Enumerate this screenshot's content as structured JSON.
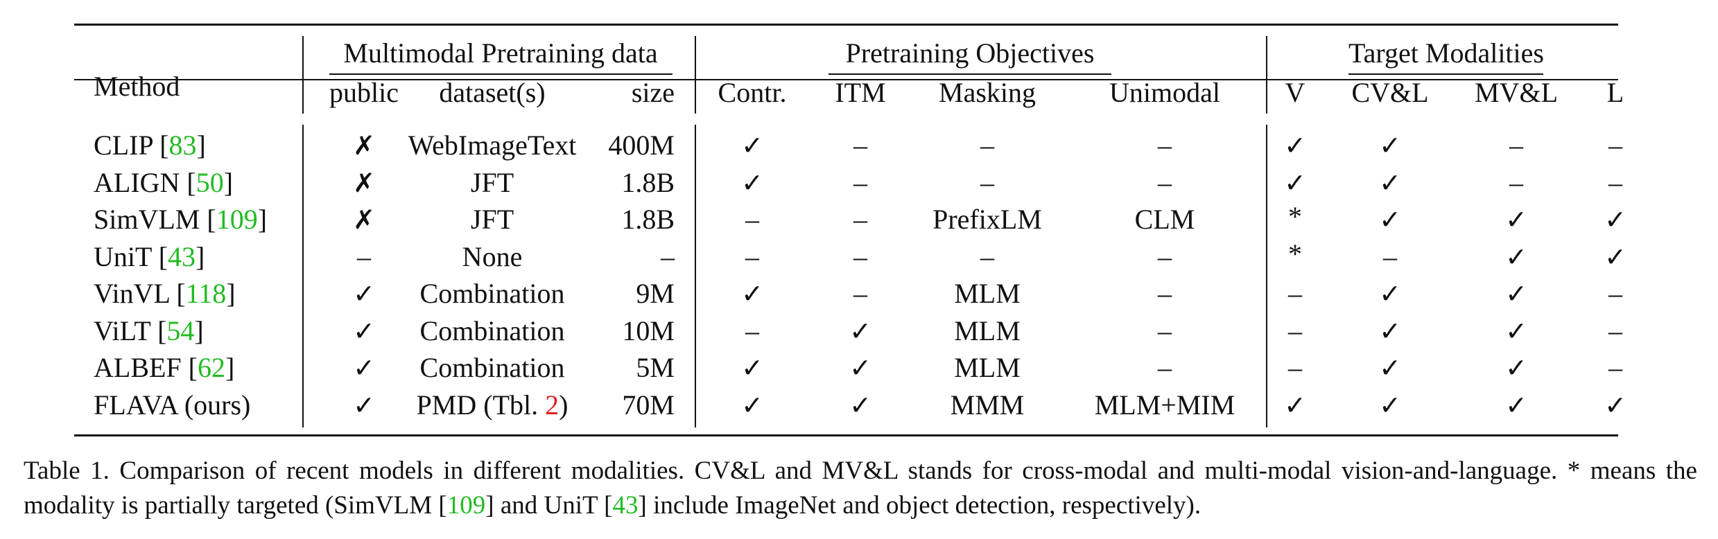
{
  "table": {
    "header": {
      "method": "Method",
      "group_pretraining_data": "Multimodal Pretraining data",
      "group_objectives": "Pretraining Objectives",
      "group_targets": "Target Modalities",
      "public": "public",
      "datasets": "dataset(s)",
      "size": "size",
      "contr": "Contr.",
      "itm": "ITM",
      "masking": "Masking",
      "unimodal": "Unimodal",
      "v": "V",
      "cvl": "CV&L",
      "mvl": "MV&L",
      "l": "L"
    },
    "rows": [
      {
        "name": "CLIP [",
        "cite": "83",
        "close": "]",
        "public": "✗",
        "dataset": "WebImageText",
        "dataset_ref": "",
        "dataset_close": "",
        "size": "400M",
        "contr": "✓",
        "itm": "–",
        "masking": "–",
        "unimodal": "–",
        "v": "✓",
        "cvl": "✓",
        "mvl": "–",
        "l": "–"
      },
      {
        "name": "ALIGN [",
        "cite": "50",
        "close": "]",
        "public": "✗",
        "dataset": "JFT",
        "dataset_ref": "",
        "dataset_close": "",
        "size": "1.8B",
        "contr": "✓",
        "itm": "–",
        "masking": "–",
        "unimodal": "–",
        "v": "✓",
        "cvl": "✓",
        "mvl": "–",
        "l": "–"
      },
      {
        "name": "SimVLM [",
        "cite": "109",
        "close": "]",
        "public": "✗",
        "dataset": "JFT",
        "dataset_ref": "",
        "dataset_close": "",
        "size": "1.8B",
        "contr": "–",
        "itm": "–",
        "masking": "PrefixLM",
        "unimodal": "CLM",
        "v": "*",
        "cvl": "✓",
        "mvl": "✓",
        "l": "✓"
      },
      {
        "name": "UniT [",
        "cite": "43",
        "close": "]",
        "public": "–",
        "dataset": "None",
        "dataset_ref": "",
        "dataset_close": "",
        "size": "–",
        "contr": "–",
        "itm": "–",
        "masking": "–",
        "unimodal": "–",
        "v": "*",
        "cvl": "–",
        "mvl": "✓",
        "l": "✓"
      },
      {
        "name": "VinVL [",
        "cite": "118",
        "close": "]",
        "public": "✓",
        "dataset": "Combination",
        "dataset_ref": "",
        "dataset_close": "",
        "size": "9M",
        "contr": "✓",
        "itm": "–",
        "masking": "MLM",
        "unimodal": "–",
        "v": "–",
        "cvl": "✓",
        "mvl": "✓",
        "l": "–"
      },
      {
        "name": "ViLT [",
        "cite": "54",
        "close": "]",
        "public": "✓",
        "dataset": "Combination",
        "dataset_ref": "",
        "dataset_close": "",
        "size": "10M",
        "contr": "–",
        "itm": "✓",
        "masking": "MLM",
        "unimodal": "–",
        "v": "–",
        "cvl": "✓",
        "mvl": "✓",
        "l": "–"
      },
      {
        "name": "ALBEF [",
        "cite": "62",
        "close": "]",
        "public": "✓",
        "dataset": "Combination",
        "dataset_ref": "",
        "dataset_close": "",
        "size": "5M",
        "contr": "✓",
        "itm": "✓",
        "masking": "MLM",
        "unimodal": "–",
        "v": "–",
        "cvl": "✓",
        "mvl": "✓",
        "l": "–"
      },
      {
        "name": "FLAVA (ours)",
        "cite": "",
        "close": "",
        "public": "✓",
        "dataset": "PMD (Tbl. ",
        "dataset_ref": "2",
        "dataset_close": ")",
        "size": "70M",
        "contr": "✓",
        "itm": "✓",
        "masking": "MMM",
        "unimodal": "MLM+MIM",
        "v": "✓",
        "cvl": "✓",
        "mvl": "✓",
        "l": "✓"
      }
    ]
  },
  "caption": {
    "label": "Table 1.",
    "text_a": "Comparison of recent models in different modalities. CV&L and MV&L stands for cross-modal and multi-modal vision-and-language. * means the modality is partially targeted (SimVLM [",
    "cite_a": "109",
    "text_b": "] and UniT [",
    "cite_b": "43",
    "text_c": "] include ImageNet and object detection, respectively)."
  }
}
